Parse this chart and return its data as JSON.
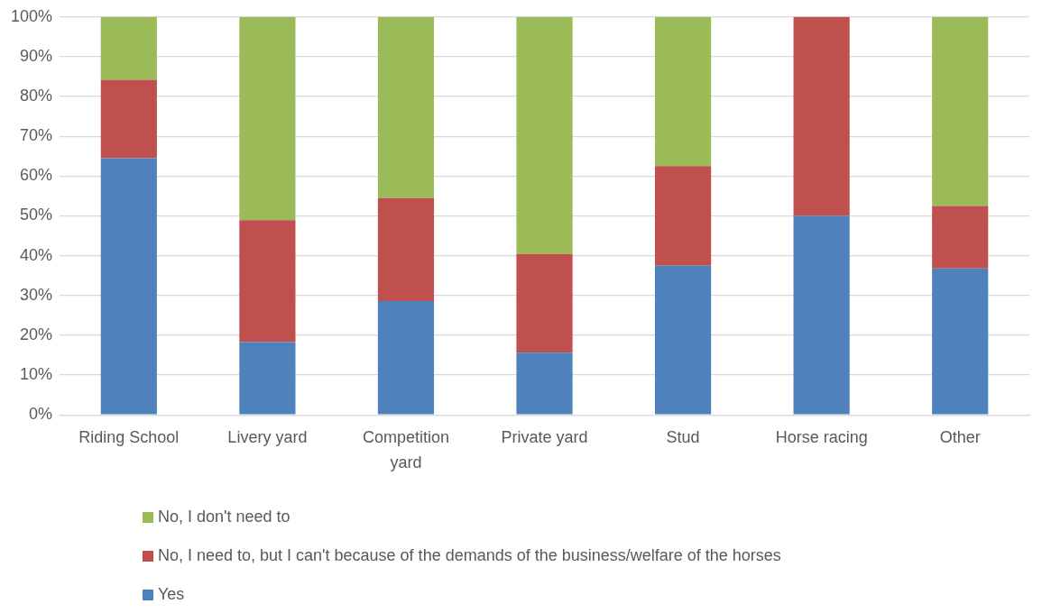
{
  "chart_data": {
    "type": "bar",
    "stacked": true,
    "categories": [
      "Riding School",
      "Livery yard",
      "Competition yard",
      "Private yard",
      "Stud",
      "Horse racing",
      "Other"
    ],
    "series": [
      {
        "name": "Yes",
        "color": "#4f81bd",
        "values": [
          64.5,
          18.3,
          28.6,
          15.6,
          37.5,
          50,
          36.8
        ]
      },
      {
        "name": "No, I need to, but I can't because of the demands of the business/welfare of the horses",
        "color": "#c0504d",
        "values": [
          19.7,
          30.6,
          25.9,
          24.8,
          25,
          50,
          15.7
        ]
      },
      {
        "name": "No, I don't need to",
        "color": "#9bbb59",
        "values": [
          15.8,
          51.1,
          45.5,
          59.6,
          37.5,
          0,
          47.5
        ]
      }
    ],
    "ylim": [
      0,
      100
    ],
    "yticks": [
      {
        "value": 0,
        "label": "0%"
      },
      {
        "value": 10,
        "label": "10%"
      },
      {
        "value": 20,
        "label": "20%"
      },
      {
        "value": 30,
        "label": "30%"
      },
      {
        "value": 40,
        "label": "40%"
      },
      {
        "value": 50,
        "label": "50%"
      },
      {
        "value": 60,
        "label": "60%"
      },
      {
        "value": 70,
        "label": "70%"
      },
      {
        "value": 80,
        "label": "80%"
      },
      {
        "value": 90,
        "label": "90%"
      },
      {
        "value": 100,
        "label": "100%"
      }
    ],
    "grid": "y",
    "legend": "bottom"
  }
}
